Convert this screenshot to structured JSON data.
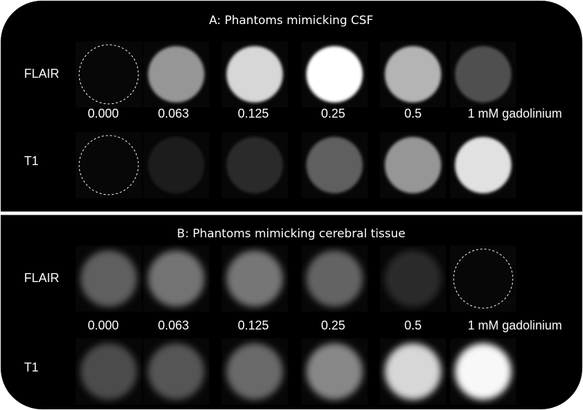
{
  "panels": [
    {
      "title": "A: Phantoms mimicking CSF",
      "rows": [
        "FLAIR",
        "T1"
      ],
      "concentrations": [
        "0.000",
        "0.063",
        "0.125",
        "0.25",
        "0.5",
        "1 mM gadolinium"
      ]
    },
    {
      "title": "B: Phantoms mimicking cerebral tissue",
      "rows": [
        "FLAIR",
        "T1"
      ],
      "concentrations": [
        "0.000",
        "0.063",
        "0.125",
        "0.25",
        "0.5",
        "1 mM gadolinium"
      ]
    }
  ]
}
